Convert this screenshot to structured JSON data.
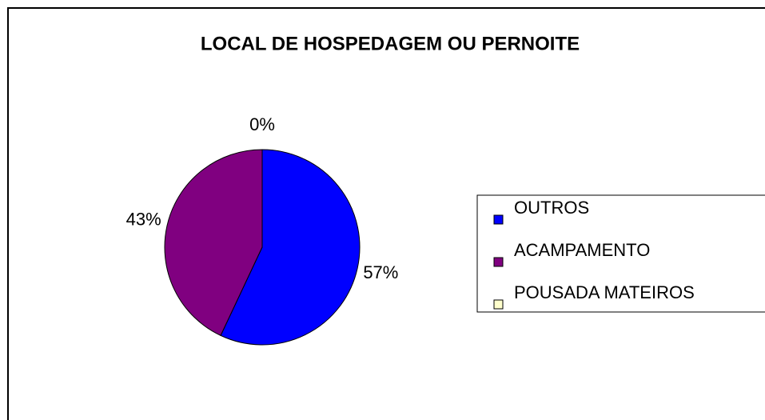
{
  "chart_data": {
    "type": "pie",
    "title": "LOCAL DE HOSPEDAGEM OU PERNOITE",
    "categories": [
      "OUTROS",
      "ACAMPAMENTO",
      "POUSADA MATEIROS"
    ],
    "values": [
      57,
      43,
      0
    ],
    "value_labels": [
      "57%",
      "43%",
      "0%"
    ],
    "colors": [
      "#0000ff",
      "#800080",
      "#ffffcc"
    ],
    "legend": "right"
  }
}
